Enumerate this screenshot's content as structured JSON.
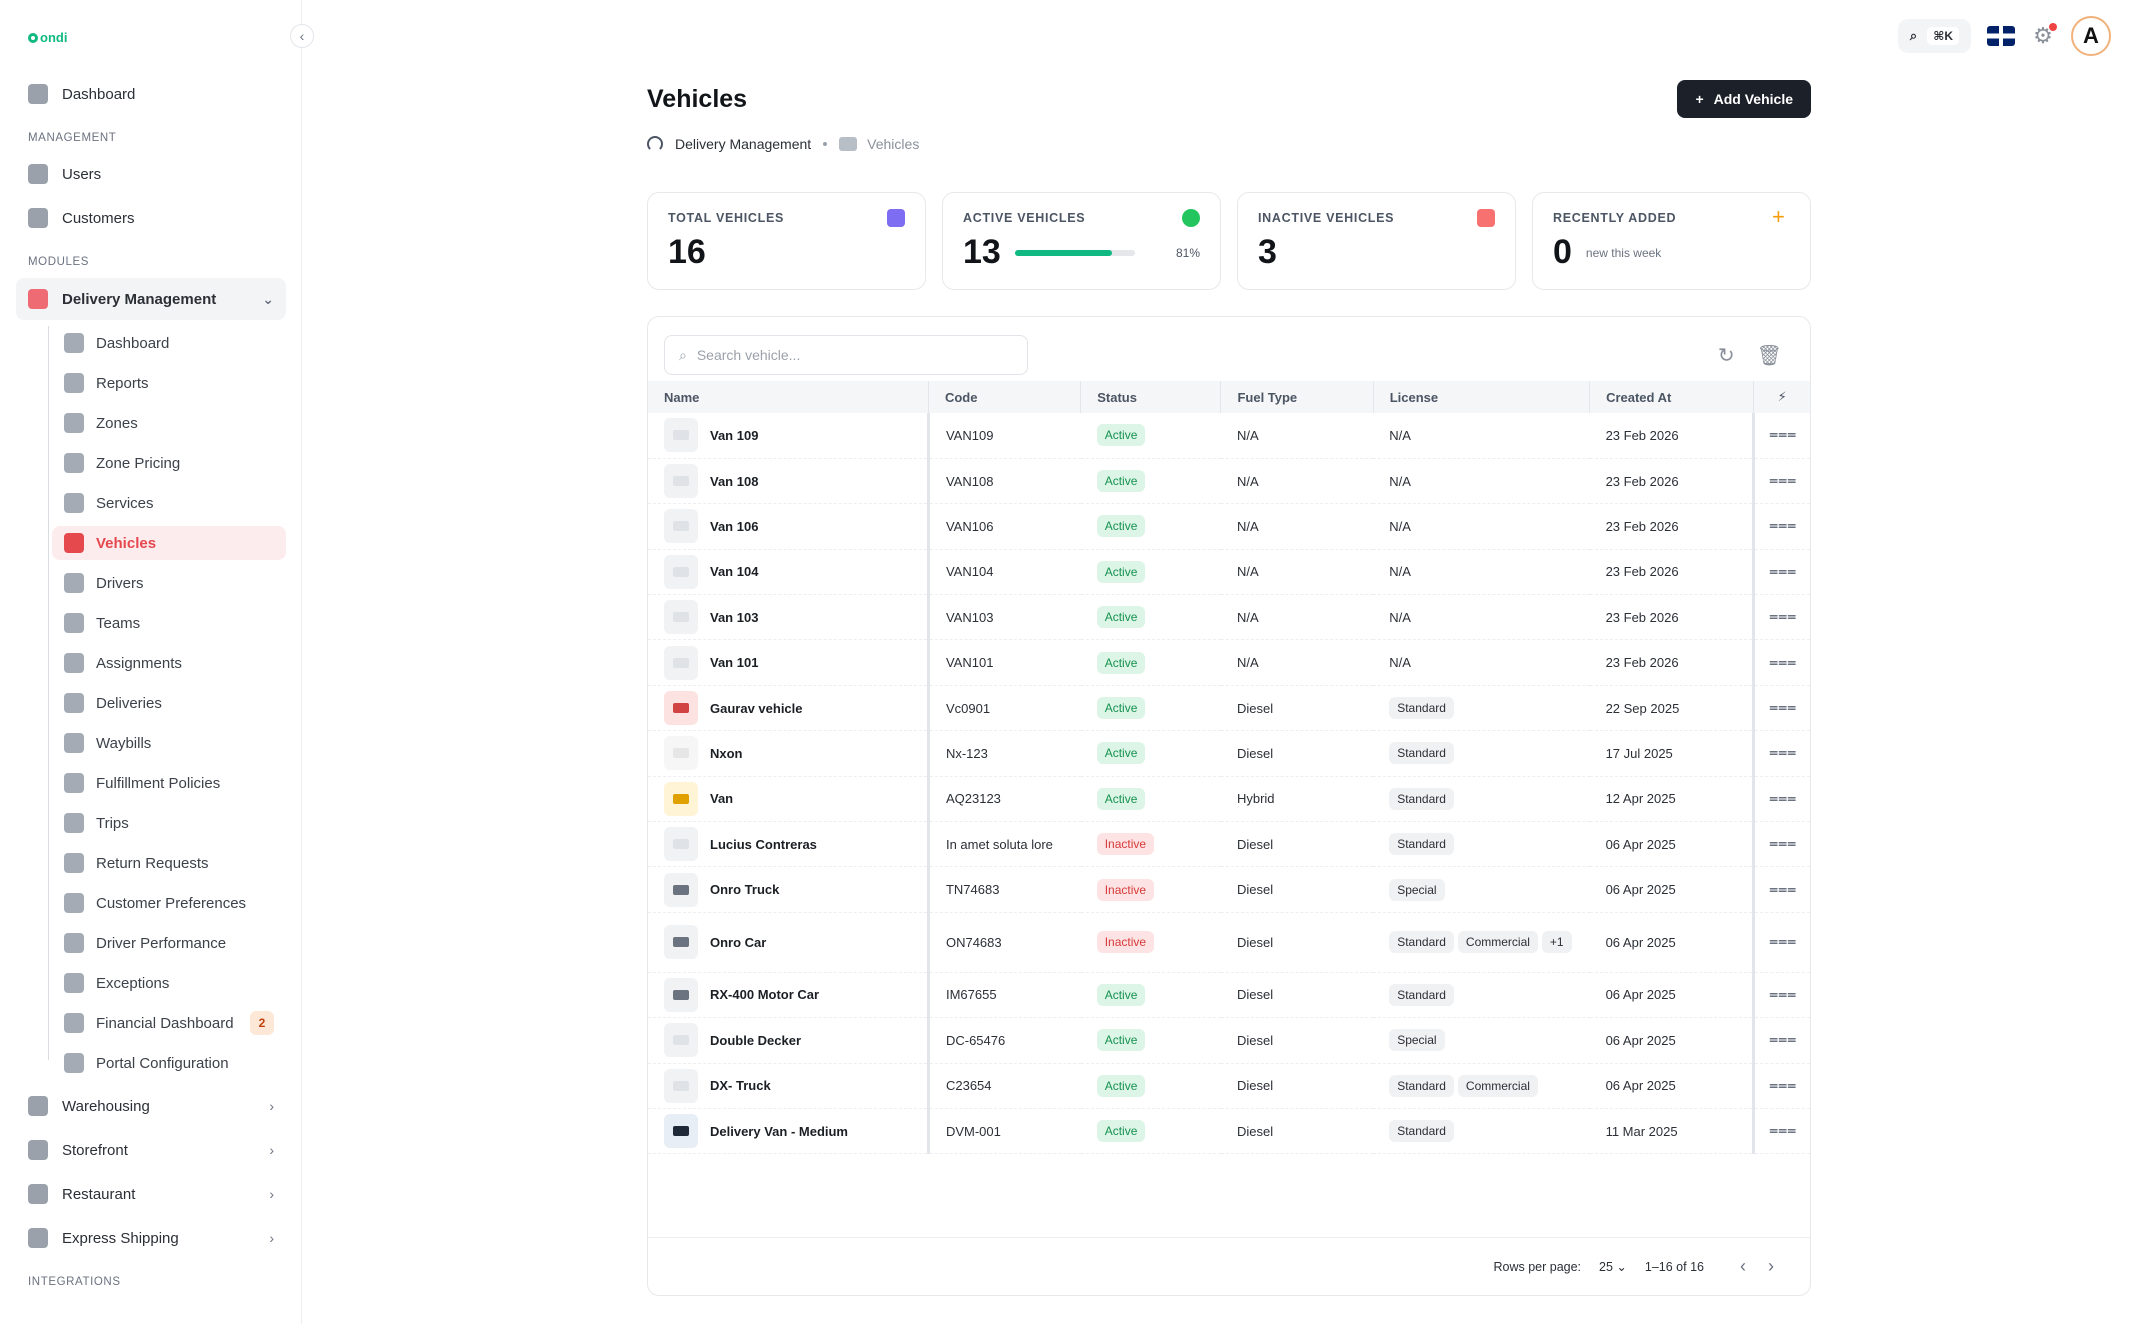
{
  "app": {
    "logo_text": "ondi"
  },
  "sidebar": {
    "dashboard": "Dashboard",
    "section_management": "MANAGEMENT",
    "users": "Users",
    "customers": "Customers",
    "section_modules": "MODULES",
    "group_label": "Delivery Management",
    "sub_items": [
      {
        "label": "Dashboard",
        "icon": "gauge-icon"
      },
      {
        "label": "Reports",
        "icon": "bar-chart-icon"
      },
      {
        "label": "Zones",
        "icon": "map-pin-icon"
      },
      {
        "label": "Zone Pricing",
        "icon": "dollar-icon"
      },
      {
        "label": "Services",
        "icon": "service-icon"
      },
      {
        "label": "Vehicles",
        "icon": "vehicle-icon",
        "active": true
      },
      {
        "label": "Drivers",
        "icon": "id-card-icon"
      },
      {
        "label": "Teams",
        "icon": "team-icon"
      },
      {
        "label": "Assignments",
        "icon": "clipboard-icon"
      },
      {
        "label": "Deliveries",
        "icon": "truck-icon"
      },
      {
        "label": "Waybills",
        "icon": "package-icon"
      },
      {
        "label": "Fulfillment Policies",
        "icon": "truck-icon"
      },
      {
        "label": "Trips",
        "icon": "truck-icon"
      },
      {
        "label": "Return Requests",
        "icon": "return-icon"
      },
      {
        "label": "Customer Preferences",
        "icon": "sliders-icon"
      },
      {
        "label": "Driver Performance",
        "icon": "speedometer-icon"
      },
      {
        "label": "Exceptions",
        "icon": "warning-icon"
      },
      {
        "label": "Financial Dashboard",
        "icon": "finance-icon",
        "badge": "2"
      },
      {
        "label": "Portal Configuration",
        "icon": "wrench-icon"
      }
    ],
    "warehousing": "Warehousing",
    "storefront": "Storefront",
    "restaurant": "Restaurant",
    "express_shipping": "Express Shipping",
    "section_integrations": "INTEGRATIONS"
  },
  "topbar": {
    "shortcut": "⌘K"
  },
  "page": {
    "title": "Vehicles",
    "add_button": "Add Vehicle",
    "breadcrumb": {
      "parent": "Delivery Management",
      "current": "Vehicles"
    }
  },
  "stats": {
    "total": {
      "label": "TOTAL VEHICLES",
      "value": "16"
    },
    "active": {
      "label": "ACTIVE VEHICLES",
      "value": "13",
      "percent": "81%",
      "fraction": 0.81
    },
    "inactive": {
      "label": "INACTIVE VEHICLES",
      "value": "3"
    },
    "recent": {
      "label": "RECENTLY ADDED",
      "value": "0",
      "note": "new this week"
    }
  },
  "table": {
    "search_placeholder": "Search vehicle...",
    "columns": [
      "Name",
      "Code",
      "Status",
      "Fuel Type",
      "License",
      "Created At"
    ],
    "rows": [
      {
        "name": "Van 109",
        "code": "VAN109",
        "status": "Active",
        "fuel": "N/A",
        "license": [],
        "license_text": "N/A",
        "created": "23 Feb 2026",
        "thumb": "c0"
      },
      {
        "name": "Van 108",
        "code": "VAN108",
        "status": "Active",
        "fuel": "N/A",
        "license": [],
        "license_text": "N/A",
        "created": "23 Feb 2026",
        "thumb": "c0"
      },
      {
        "name": "Van 106",
        "code": "VAN106",
        "status": "Active",
        "fuel": "N/A",
        "license": [],
        "license_text": "N/A",
        "created": "23 Feb 2026",
        "thumb": "c0"
      },
      {
        "name": "Van 104",
        "code": "VAN104",
        "status": "Active",
        "fuel": "N/A",
        "license": [],
        "license_text": "N/A",
        "created": "23 Feb 2026",
        "thumb": "c0"
      },
      {
        "name": "Van 103",
        "code": "VAN103",
        "status": "Active",
        "fuel": "N/A",
        "license": [],
        "license_text": "N/A",
        "created": "23 Feb 2026",
        "thumb": "c0"
      },
      {
        "name": "Van 101",
        "code": "VAN101",
        "status": "Active",
        "fuel": "N/A",
        "license": [],
        "license_text": "N/A",
        "created": "23 Feb 2026",
        "thumb": "c0"
      },
      {
        "name": "Gaurav vehicle",
        "code": "Vc0901",
        "status": "Active",
        "fuel": "Diesel",
        "license": [
          "Standard"
        ],
        "created": "22 Sep 2025",
        "thumb": "c1"
      },
      {
        "name": "Nxon",
        "code": "Nx-123",
        "status": "Active",
        "fuel": "Diesel",
        "license": [
          "Standard"
        ],
        "created": "17 Jul 2025",
        "thumb": "c2"
      },
      {
        "name": "Van",
        "code": "AQ23123",
        "status": "Active",
        "fuel": "Hybrid",
        "license": [
          "Standard"
        ],
        "created": "12 Apr 2025",
        "thumb": "c3"
      },
      {
        "name": "Lucius Contreras",
        "code": "In amet soluta lore",
        "status": "Inactive",
        "fuel": "Diesel",
        "license": [
          "Standard"
        ],
        "created": "06 Apr 2025",
        "thumb": "c0"
      },
      {
        "name": "Onro Truck",
        "code": "TN74683",
        "status": "Inactive",
        "fuel": "Diesel",
        "license": [
          "Special"
        ],
        "created": "06 Apr 2025",
        "thumb": "c4"
      },
      {
        "name": "Onro Car",
        "code": "ON74683",
        "status": "Inactive",
        "fuel": "Diesel",
        "license": [
          "Standard",
          "Commercial",
          "+1"
        ],
        "created": "06 Apr 2025",
        "thumb": "c4"
      },
      {
        "name": "RX-400 Motor Car",
        "code": "IM67655",
        "status": "Active",
        "fuel": "Diesel",
        "license": [
          "Standard"
        ],
        "created": "06 Apr 2025",
        "thumb": "c4"
      },
      {
        "name": "Double Decker",
        "code": "DC-65476",
        "status": "Active",
        "fuel": "Diesel",
        "license": [
          "Special"
        ],
        "created": "06 Apr 2025",
        "thumb": "c0"
      },
      {
        "name": "DX- Truck",
        "code": "C23654",
        "status": "Active",
        "fuel": "Diesel",
        "license": [
          "Standard",
          "Commercial"
        ],
        "created": "06 Apr 2025",
        "thumb": "c0"
      },
      {
        "name": "Delivery Van - Medium",
        "code": "DVM-001",
        "status": "Active",
        "fuel": "Diesel",
        "license": [
          "Standard"
        ],
        "created": "11 Mar 2025",
        "thumb": "c5"
      }
    ],
    "footer": {
      "rows_per_page_label": "Rows per page:",
      "rows_per_page": "25",
      "range": "1–16 of 16"
    }
  },
  "colors": {
    "accent": "#e5484d",
    "active_green": "#16924f",
    "inactive_red": "#d73a3a",
    "primary_button": "#1c2028"
  }
}
